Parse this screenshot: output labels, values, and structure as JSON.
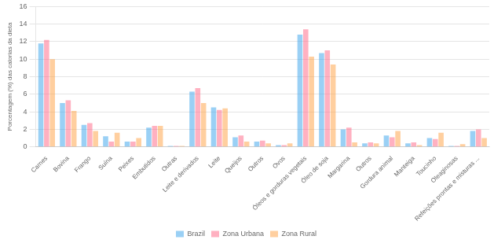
{
  "chart_data": {
    "type": "bar",
    "categories": [
      "Carnes",
      "Bovina",
      "Frango",
      "Suína",
      "Peixes",
      "Embutidos",
      "Outras",
      "Leite e derivados",
      "Leite",
      "Queijos",
      "Outros",
      "Ovos",
      "Óleos e gorduras vegetais",
      "Óleo de soja",
      "Margarina",
      "Outros",
      "Gordura animal",
      "Manteiga",
      "Toucinho",
      "Oleaginosas",
      "Refeições prontas e misturas ..."
    ],
    "series": [
      {
        "name": "Brazil",
        "values": [
          11.8,
          5.0,
          2.5,
          1.2,
          0.6,
          2.2,
          0.1,
          6.3,
          4.5,
          1.1,
          0.6,
          0.2,
          12.8,
          10.7,
          2.0,
          0.4,
          1.3,
          0.4,
          1.0,
          0.1,
          1.8
        ]
      },
      {
        "name": "Zona Urbana",
        "values": [
          12.2,
          5.3,
          2.7,
          0.6,
          0.6,
          2.4,
          0.1,
          6.7,
          4.2,
          1.3,
          0.7,
          0.2,
          13.4,
          11.0,
          2.2,
          0.5,
          1.1,
          0.5,
          0.9,
          0.1,
          2.0
        ]
      },
      {
        "name": "Zona Rural",
        "values": [
          10.0,
          4.1,
          1.8,
          1.6,
          1.0,
          2.4,
          0.1,
          5.0,
          4.4,
          0.6,
          0.4,
          0.4,
          10.3,
          9.4,
          0.5,
          0.4,
          1.8,
          0.2,
          1.6,
          0.3,
          1.0
        ]
      }
    ],
    "ylabel": "Porcentagem (%) das calorias da dieta",
    "ylim": [
      0,
      16
    ],
    "yticks": [
      0,
      2,
      4,
      6,
      8,
      10,
      12,
      14,
      16
    ],
    "grid": true,
    "legend": "bottom"
  }
}
